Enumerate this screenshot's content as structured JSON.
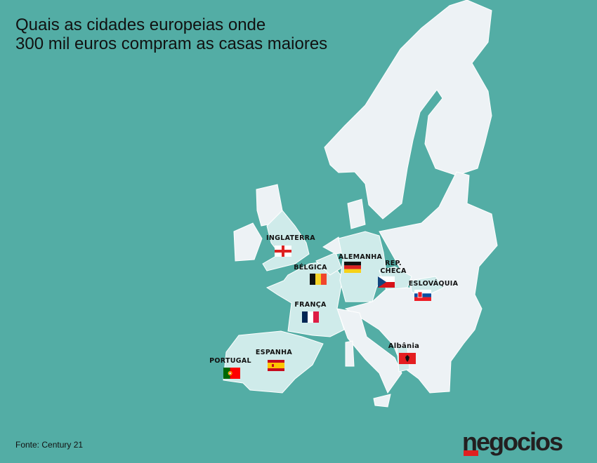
{
  "title": {
    "line1": "Quais as cidades europeias onde",
    "line2": "300 mil euros compram as casas maiores"
  },
  "countries": [
    {
      "label": "INGLATERRA",
      "flag": "england-flag"
    },
    {
      "label": "BÉLGICA",
      "flag": "belgium-flag"
    },
    {
      "label": "ALEMANHA",
      "flag": "germany-flag"
    },
    {
      "label_line1": "REP.",
      "label_line2": "CHECA",
      "flag": "czech-flag"
    },
    {
      "label": "ESLOVÁQUIA",
      "flag": "slovakia-flag"
    },
    {
      "label": "FRANÇA",
      "flag": "france-flag"
    },
    {
      "label": "Albânia",
      "flag": "albania-flag"
    },
    {
      "label": "ESPANHA",
      "flag": "spain-flag"
    },
    {
      "label": "PORTUGAL",
      "flag": "portugal-flag"
    }
  ],
  "source": {
    "prefix": "Fonte:",
    "name": "Century 21"
  },
  "logo": "negocios",
  "colors": {
    "sea": "#53ADA5",
    "land": "#EDF2F5",
    "highlight": "#CFEBEA",
    "logo_accent": "#e02020"
  }
}
